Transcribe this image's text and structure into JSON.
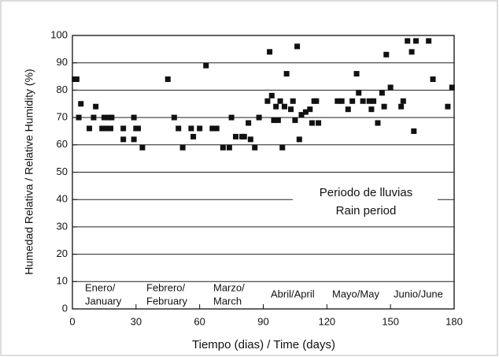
{
  "chart_data": {
    "type": "scatter",
    "x_label": "Tiempo (dias) / Time (days)",
    "y_label": "Humedad Relativa / Relative Humidity (%)",
    "x": [
      1,
      2,
      3,
      4,
      8,
      10,
      11,
      14,
      15,
      16,
      17,
      18,
      18.5,
      24,
      24,
      29,
      29,
      30,
      31,
      33,
      45,
      48,
      50,
      52,
      56,
      57,
      60,
      63,
      66,
      68,
      71,
      74,
      75,
      77,
      80,
      81,
      83,
      84,
      86,
      88,
      92,
      93,
      94,
      95,
      96,
      97,
      98,
      99,
      100,
      101,
      103,
      104,
      105,
      106,
      107,
      108,
      110,
      112,
      113,
      114,
      115,
      116,
      125,
      127,
      130,
      132,
      134,
      135,
      137,
      140,
      141,
      142,
      144,
      146,
      147,
      148,
      150,
      155,
      156,
      158,
      160,
      161,
      162,
      168,
      170,
      177,
      179
    ],
    "values": [
      84,
      84,
      70,
      75,
      66,
      70,
      74,
      66,
      70,
      66,
      70,
      66,
      70,
      66,
      62,
      62,
      70,
      66,
      66,
      59,
      84,
      70,
      66,
      59,
      66,
      63,
      66,
      89,
      66,
      66,
      59,
      59,
      70,
      63,
      63,
      63,
      68,
      62,
      59,
      70,
      76,
      94,
      78,
      69,
      74,
      69,
      76,
      59,
      74,
      86,
      73,
      76,
      69,
      96,
      62,
      71,
      72,
      73,
      68,
      76,
      76,
      68,
      76,
      76,
      73,
      76,
      86,
      79,
      76,
      76,
      73,
      76,
      68,
      79,
      74,
      93,
      81,
      74,
      76,
      98,
      94,
      65,
      98,
      98,
      84,
      74,
      81
    ],
    "color": "#111111",
    "xlim": [
      0,
      180
    ],
    "xticks": [
      0,
      30,
      60,
      90,
      120,
      150,
      180
    ],
    "ylim": [
      0,
      100
    ],
    "yticks": [
      0,
      10,
      20,
      30,
      40,
      50,
      60,
      70,
      80,
      90,
      100
    ],
    "grid": true,
    "annotations": [
      "Enero/",
      "January",
      "Febrero/",
      "February",
      "Marzo/",
      "March",
      "Abril/April",
      "Mayo/May",
      "Junio/June",
      "Periodo de lluvias",
      "Rain period"
    ]
  }
}
